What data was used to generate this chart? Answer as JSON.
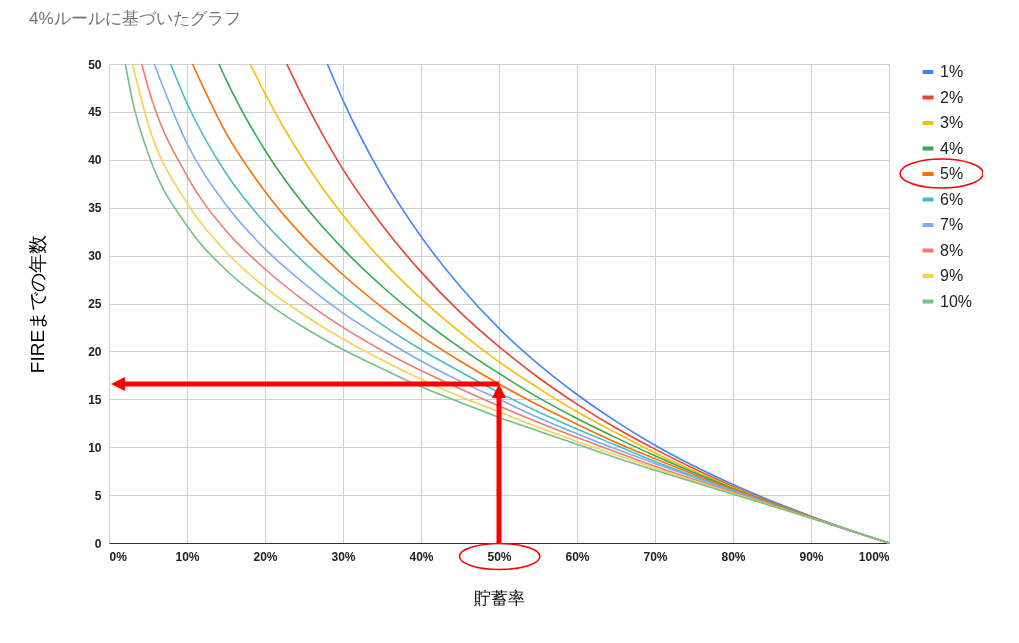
{
  "chart_data": {
    "type": "line",
    "title": "4%ルールに基づいたグラフ",
    "xlabel": "貯蓄率",
    "ylabel": "FIREまでの年数",
    "xlim": [
      0,
      100
    ],
    "ylim": [
      0,
      50
    ],
    "xticks": [
      {
        "value": 0,
        "label": "0%"
      },
      {
        "value": 10,
        "label": "10%"
      },
      {
        "value": 20,
        "label": "20%"
      },
      {
        "value": 30,
        "label": "30%"
      },
      {
        "value": 40,
        "label": "40%"
      },
      {
        "value": 50,
        "label": "50%"
      },
      {
        "value": 60,
        "label": "60%"
      },
      {
        "value": 70,
        "label": "70%"
      },
      {
        "value": 80,
        "label": "80%"
      },
      {
        "value": 90,
        "label": "90%"
      },
      {
        "value": 100,
        "label": "100%"
      }
    ],
    "yticks": [
      0,
      5,
      10,
      15,
      20,
      25,
      30,
      35,
      40,
      45,
      50
    ],
    "grid": true,
    "legend": "right",
    "series": [
      {
        "name": "1%",
        "color": "#4285f4",
        "x": [
          28,
          30,
          35,
          40,
          45,
          50,
          55,
          60,
          65,
          70,
          80,
          90,
          100
        ],
        "values": [
          50,
          46.2,
          38.3,
          32.0,
          26.8,
          22.4,
          18.7,
          15.5,
          12.7,
          10.2,
          6.1,
          2.8,
          0
        ]
      },
      {
        "name": "2%",
        "color": "#ea4335",
        "x": [
          22.8,
          25,
          30,
          35,
          40,
          45,
          50,
          55,
          60,
          65,
          70,
          80,
          90,
          100
        ],
        "values": [
          50,
          46.3,
          39.0,
          33.2,
          28.3,
          24.1,
          20.5,
          17.3,
          14.5,
          12.0,
          9.8,
          5.9,
          2.7,
          0
        ]
      },
      {
        "name": "3%",
        "color": "#fbbc04",
        "x": [
          18.1,
          20,
          25,
          30,
          35,
          40,
          45,
          50,
          55,
          60,
          65,
          70,
          80,
          90,
          100
        ],
        "values": [
          50,
          46.9,
          39.9,
          34.2,
          29.5,
          25.5,
          22.0,
          18.9,
          16.2,
          13.7,
          11.5,
          9.4,
          5.8,
          2.7,
          0
        ]
      },
      {
        "name": "4%",
        "color": "#34a853",
        "x": [
          14.1,
          15,
          20,
          25,
          30,
          35,
          40,
          45,
          50,
          55,
          60,
          65,
          70,
          80,
          90,
          100
        ],
        "values": [
          50,
          48.4,
          41.0,
          35.3,
          30.7,
          26.8,
          23.4,
          20.4,
          17.7,
          15.2,
          13.0,
          11.0,
          9.1,
          5.7,
          2.7,
          0
        ]
      },
      {
        "name": "5%",
        "color": "#ff6d01",
        "x": [
          10.7,
          15,
          20,
          25,
          30,
          35,
          40,
          45,
          50,
          55,
          60,
          65,
          70,
          80,
          90,
          100
        ],
        "values": [
          50,
          42.8,
          36.7,
          31.9,
          28.0,
          24.6,
          21.6,
          19.0,
          16.6,
          14.4,
          12.4,
          10.5,
          8.8,
          5.6,
          2.7,
          0
        ]
      },
      {
        "name": "6%",
        "color": "#46bdc6",
        "x": [
          7.9,
          10,
          15,
          20,
          25,
          30,
          35,
          40,
          45,
          50,
          55,
          60,
          65,
          70,
          80,
          90,
          100
        ],
        "values": [
          50,
          45.9,
          38.6,
          33.4,
          29.3,
          25.8,
          22.8,
          20.2,
          17.9,
          15.7,
          13.7,
          11.9,
          10.2,
          8.5,
          5.5,
          2.6,
          0
        ]
      },
      {
        "name": "7%",
        "color": "#7baaf7",
        "x": [
          5.8,
          10,
          15,
          20,
          25,
          30,
          35,
          40,
          45,
          50,
          55,
          60,
          65,
          70,
          80,
          90,
          100
        ],
        "values": [
          50,
          41.7,
          35.3,
          30.7,
          27.1,
          24.0,
          21.4,
          19.0,
          16.9,
          15.0,
          13.1,
          11.4,
          9.8,
          8.3,
          5.4,
          2.6,
          0
        ]
      },
      {
        "name": "8%",
        "color": "#f07b72",
        "x": [
          4.2,
          5,
          10,
          15,
          20,
          25,
          30,
          35,
          40,
          45,
          50,
          55,
          60,
          65,
          70,
          80,
          90,
          100
        ],
        "values": [
          50,
          47.6,
          38.3,
          32.6,
          28.6,
          25.3,
          22.5,
          20.1,
          18.0,
          16.1,
          14.3,
          12.6,
          11.0,
          9.5,
          8.0,
          5.3,
          2.6,
          0
        ]
      },
      {
        "name": "9%",
        "color": "#fcd04f",
        "x": [
          3.0,
          5,
          10,
          15,
          20,
          25,
          30,
          35,
          40,
          45,
          50,
          55,
          60,
          65,
          70,
          80,
          90,
          100
        ],
        "values": [
          50,
          43.8,
          35.5,
          30.4,
          26.7,
          23.8,
          21.3,
          19.1,
          17.1,
          15.3,
          13.7,
          12.1,
          10.6,
          9.2,
          7.8,
          5.2,
          2.6,
          0
        ]
      },
      {
        "name": "10%",
        "color": "#71c287",
        "x": [
          2.1,
          3,
          5,
          10,
          15,
          20,
          25,
          30,
          35,
          40,
          45,
          50,
          55,
          60,
          65,
          70,
          80,
          90,
          100
        ],
        "values": [
          50,
          46.2,
          40.7,
          33.1,
          28.5,
          25.2,
          22.5,
          20.2,
          18.2,
          16.3,
          14.7,
          13.1,
          11.7,
          10.3,
          8.9,
          7.6,
          5.1,
          2.6,
          0
        ]
      }
    ]
  }
}
